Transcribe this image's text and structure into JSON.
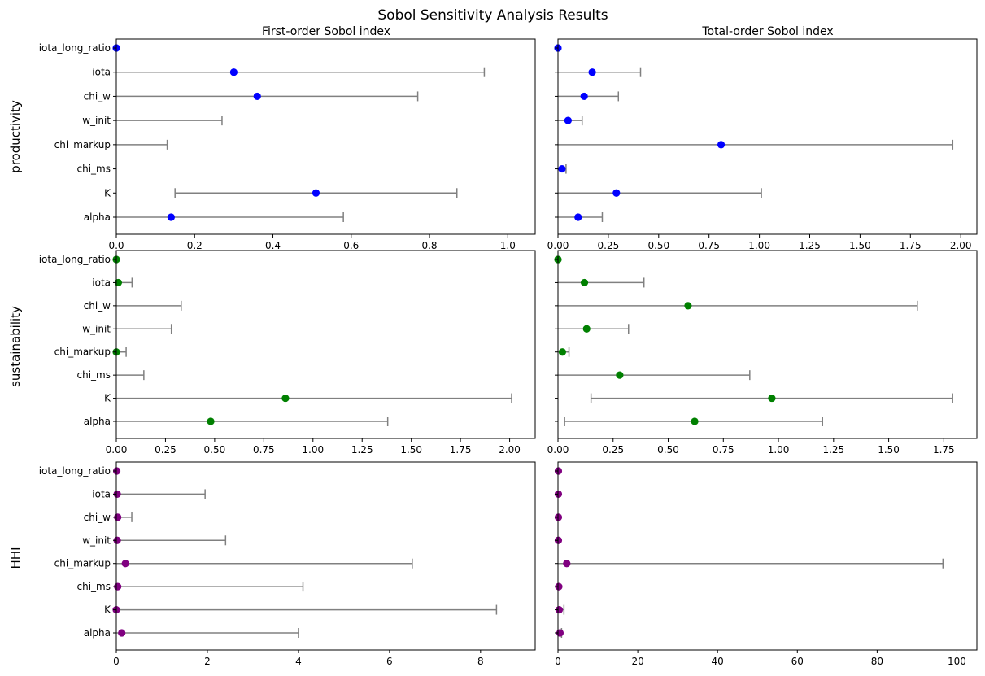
{
  "title": "Sobol Sensitivity Analysis Results",
  "column_titles": [
    "First-order Sobol index",
    "Total-order Sobol index"
  ],
  "params": [
    "alpha",
    "K",
    "chi_ms",
    "chi_markup",
    "w_init",
    "chi_w",
    "iota",
    "iota_long_ratio"
  ],
  "colors": {
    "error": "#808080",
    "productivity": "#0000ff",
    "sustainability": "#008000",
    "HHI": "#800080"
  },
  "chart_data": [
    {
      "type": "scatter",
      "row": "productivity",
      "panel": "First-order Sobol index",
      "color": "#0000ff",
      "xlim": [
        0,
        1.07
      ],
      "xticks": [
        0,
        0.2,
        0.4,
        0.6,
        0.8,
        1.0
      ],
      "xtick_labels": [
        "0.0",
        "0.2",
        "0.4",
        "0.6",
        "0.8",
        "1.0"
      ],
      "categories": [
        "alpha",
        "K",
        "chi_ms",
        "chi_markup",
        "w_init",
        "chi_w",
        "iota",
        "iota_long_ratio"
      ],
      "values": [
        0.14,
        0.51,
        null,
        null,
        null,
        0.36,
        0.3,
        0.0
      ],
      "err_low": [
        0.0,
        0.15,
        null,
        0.0,
        0.0,
        0.0,
        0.0,
        null
      ],
      "err_high": [
        0.58,
        0.87,
        null,
        0.13,
        0.27,
        0.77,
        0.94,
        null
      ]
    },
    {
      "type": "scatter",
      "row": "productivity",
      "panel": "Total-order Sobol index",
      "color": "#0000ff",
      "xlim": [
        0,
        2.08
      ],
      "xticks": [
        0,
        0.25,
        0.5,
        0.75,
        1.0,
        1.25,
        1.5,
        1.75,
        2.0
      ],
      "xtick_labels": [
        "0.00",
        "0.25",
        "0.50",
        "0.75",
        "1.00",
        "1.25",
        "1.50",
        "1.75",
        "2.00"
      ],
      "categories": [
        "alpha",
        "K",
        "chi_ms",
        "chi_markup",
        "w_init",
        "chi_w",
        "iota",
        "iota_long_ratio"
      ],
      "values": [
        0.1,
        0.29,
        0.02,
        0.81,
        0.05,
        0.13,
        0.17,
        0.0
      ],
      "err_low": [
        0.0,
        0.0,
        0.0,
        0.0,
        0.0,
        0.0,
        0.0,
        null
      ],
      "err_high": [
        0.22,
        1.01,
        0.04,
        1.96,
        0.12,
        0.3,
        0.41,
        null
      ]
    },
    {
      "type": "scatter",
      "row": "sustainability",
      "panel": "First-order Sobol index",
      "color": "#008000",
      "xlim": [
        0,
        2.13
      ],
      "xticks": [
        0,
        0.25,
        0.5,
        0.75,
        1.0,
        1.25,
        1.5,
        1.75,
        2.0
      ],
      "xtick_labels": [
        "0.00",
        "0.25",
        "0.50",
        "0.75",
        "1.00",
        "1.25",
        "1.50",
        "1.75",
        "2.00"
      ],
      "categories": [
        "alpha",
        "K",
        "chi_ms",
        "chi_markup",
        "w_init",
        "chi_w",
        "iota",
        "iota_long_ratio"
      ],
      "values": [
        0.48,
        0.86,
        null,
        0.0,
        null,
        null,
        0.01,
        0.0
      ],
      "err_low": [
        0.0,
        0.0,
        0.0,
        0.0,
        0.0,
        0.0,
        0.0,
        null
      ],
      "err_high": [
        1.38,
        2.01,
        0.14,
        0.05,
        0.28,
        0.33,
        0.08,
        null
      ]
    },
    {
      "type": "scatter",
      "row": "sustainability",
      "panel": "Total-order Sobol index",
      "color": "#008000",
      "xlim": [
        0,
        1.9
      ],
      "xticks": [
        0,
        0.25,
        0.5,
        0.75,
        1.0,
        1.25,
        1.5,
        1.75
      ],
      "xtick_labels": [
        "0.00",
        "0.25",
        "0.50",
        "0.75",
        "1.00",
        "1.25",
        "1.50",
        "1.75"
      ],
      "categories": [
        "alpha",
        "K",
        "chi_ms",
        "chi_markup",
        "w_init",
        "chi_w",
        "iota",
        "iota_long_ratio"
      ],
      "values": [
        0.62,
        0.97,
        0.28,
        0.02,
        0.13,
        0.59,
        0.12,
        0.0
      ],
      "err_low": [
        0.03,
        0.15,
        0.0,
        0.0,
        0.0,
        0.0,
        0.0,
        null
      ],
      "err_high": [
        1.2,
        1.79,
        0.87,
        0.05,
        0.32,
        1.63,
        0.39,
        null
      ]
    },
    {
      "type": "scatter",
      "row": "HHI",
      "panel": "First-order Sobol index",
      "color": "#800080",
      "xlim": [
        0,
        9.2
      ],
      "xticks": [
        0,
        2,
        4,
        6,
        8
      ],
      "xtick_labels": [
        "0",
        "2",
        "4",
        "6",
        "8"
      ],
      "categories": [
        "alpha",
        "K",
        "chi_ms",
        "chi_markup",
        "w_init",
        "chi_w",
        "iota",
        "iota_long_ratio"
      ],
      "values": [
        0.12,
        0.0,
        0.03,
        0.2,
        0.02,
        0.03,
        0.02,
        0.01
      ],
      "err_low": [
        0.0,
        0.0,
        0.0,
        0.0,
        0.0,
        0.0,
        0.0,
        null
      ],
      "err_high": [
        4.0,
        8.35,
        4.1,
        6.5,
        2.4,
        0.34,
        1.95,
        null
      ]
    },
    {
      "type": "scatter",
      "row": "HHI",
      "panel": "Total-order Sobol index",
      "color": "#800080",
      "xlim": [
        0,
        105
      ],
      "xticks": [
        0,
        20,
        40,
        60,
        80,
        100
      ],
      "xtick_labels": [
        "0",
        "20",
        "40",
        "60",
        "80",
        "100"
      ],
      "categories": [
        "alpha",
        "K",
        "chi_ms",
        "chi_markup",
        "w_init",
        "chi_w",
        "iota",
        "iota_long_ratio"
      ],
      "values": [
        0.5,
        0.3,
        0.2,
        2.2,
        0.1,
        0.1,
        0.1,
        0.1
      ],
      "err_low": [
        0.0,
        0.0,
        null,
        0.0,
        null,
        null,
        null,
        null
      ],
      "err_high": [
        0.9,
        1.5,
        null,
        96.5,
        null,
        null,
        null,
        null
      ]
    }
  ]
}
